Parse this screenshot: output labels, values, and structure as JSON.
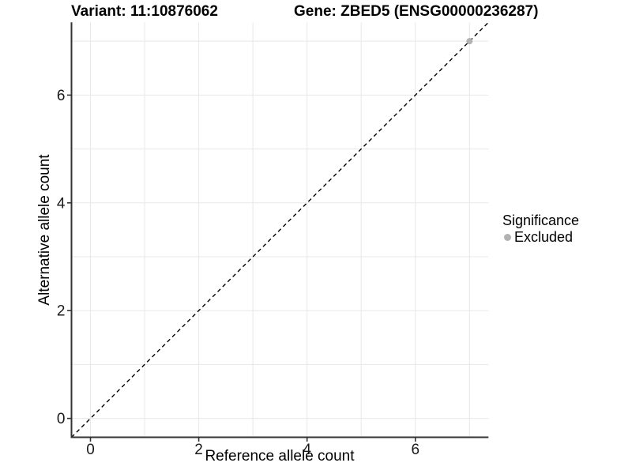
{
  "figure": {
    "title_left": "Variant: 11:10876062",
    "title_right": "Gene: ZBED5 (ENSG00000236287)"
  },
  "chart_data": {
    "type": "scatter",
    "title": "Variant: 11:10876062   Gene: ZBED5 (ENSG00000236287)",
    "xlabel": "Reference allele count",
    "ylabel": "Alternative allele count",
    "xlim": [
      -0.35,
      7.35
    ],
    "ylim": [
      -0.35,
      7.35
    ],
    "x_ticks": [
      0,
      2,
      4,
      6
    ],
    "y_ticks": [
      0,
      2,
      4,
      6
    ],
    "grid": true,
    "gridline_values": [
      0,
      1,
      2,
      3,
      4,
      5,
      6,
      7
    ],
    "identity_line": {
      "slope": 1,
      "intercept": 0,
      "style": "dashed",
      "color": "#000000"
    },
    "series": [
      {
        "name": "Excluded",
        "color": "#b2b2b2",
        "points": [
          [
            7,
            7
          ]
        ]
      }
    ],
    "legend": {
      "title": "Significance",
      "position": "right",
      "items": [
        {
          "label": "Excluded",
          "color": "#b2b2b2"
        }
      ]
    },
    "colors": {
      "grid": "#e8e8e8",
      "axis": "#333333",
      "background": "#ffffff"
    }
  }
}
